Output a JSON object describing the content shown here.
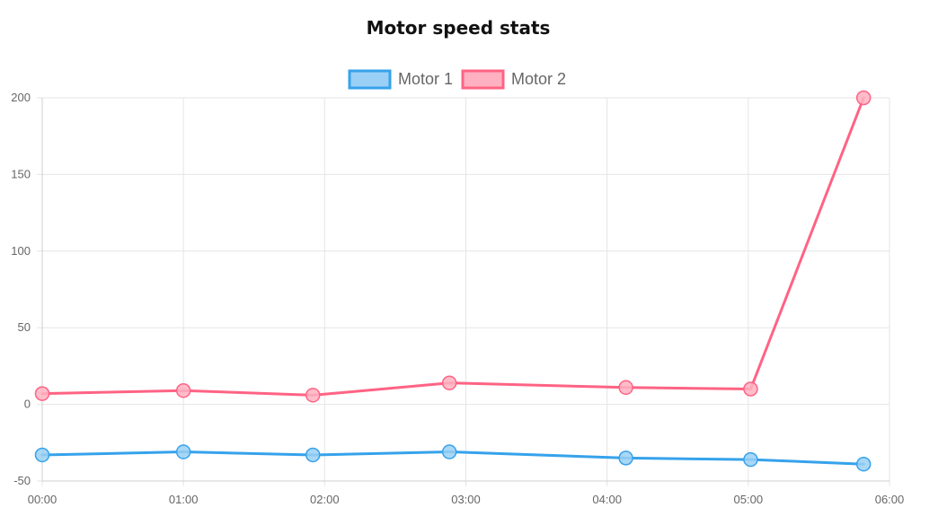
{
  "chart_data": {
    "type": "line",
    "title": "Motor speed stats",
    "x_tick_labels": [
      "00:00",
      "01:00",
      "02:00",
      "03:00",
      "04:00",
      "05:00",
      "06:00"
    ],
    "xlim": [
      "00:00",
      "06:00"
    ],
    "ylim": [
      -50,
      200
    ],
    "y_ticks": [
      -50,
      0,
      50,
      100,
      150,
      200
    ],
    "grid": true,
    "legend_position": "top",
    "series": [
      {
        "name": "Motor 1",
        "color": "#36a2eb",
        "fill": "#9ad0f5",
        "points": [
          {
            "x": "00:00",
            "y": -33
          },
          {
            "x": "01:00",
            "y": -31
          },
          {
            "x": "01:55",
            "y": -33
          },
          {
            "x": "02:53",
            "y": -31
          },
          {
            "x": "04:08",
            "y": -35
          },
          {
            "x": "05:01",
            "y": -36
          },
          {
            "x": "05:49",
            "y": -39
          }
        ]
      },
      {
        "name": "Motor 2",
        "color": "#ff6384",
        "fill": "#ffb1c1",
        "points": [
          {
            "x": "00:00",
            "y": 7
          },
          {
            "x": "01:00",
            "y": 9
          },
          {
            "x": "01:55",
            "y": 6
          },
          {
            "x": "02:53",
            "y": 14
          },
          {
            "x": "04:08",
            "y": 11
          },
          {
            "x": "05:01",
            "y": 10
          },
          {
            "x": "05:49",
            "y": 200
          }
        ]
      }
    ]
  }
}
